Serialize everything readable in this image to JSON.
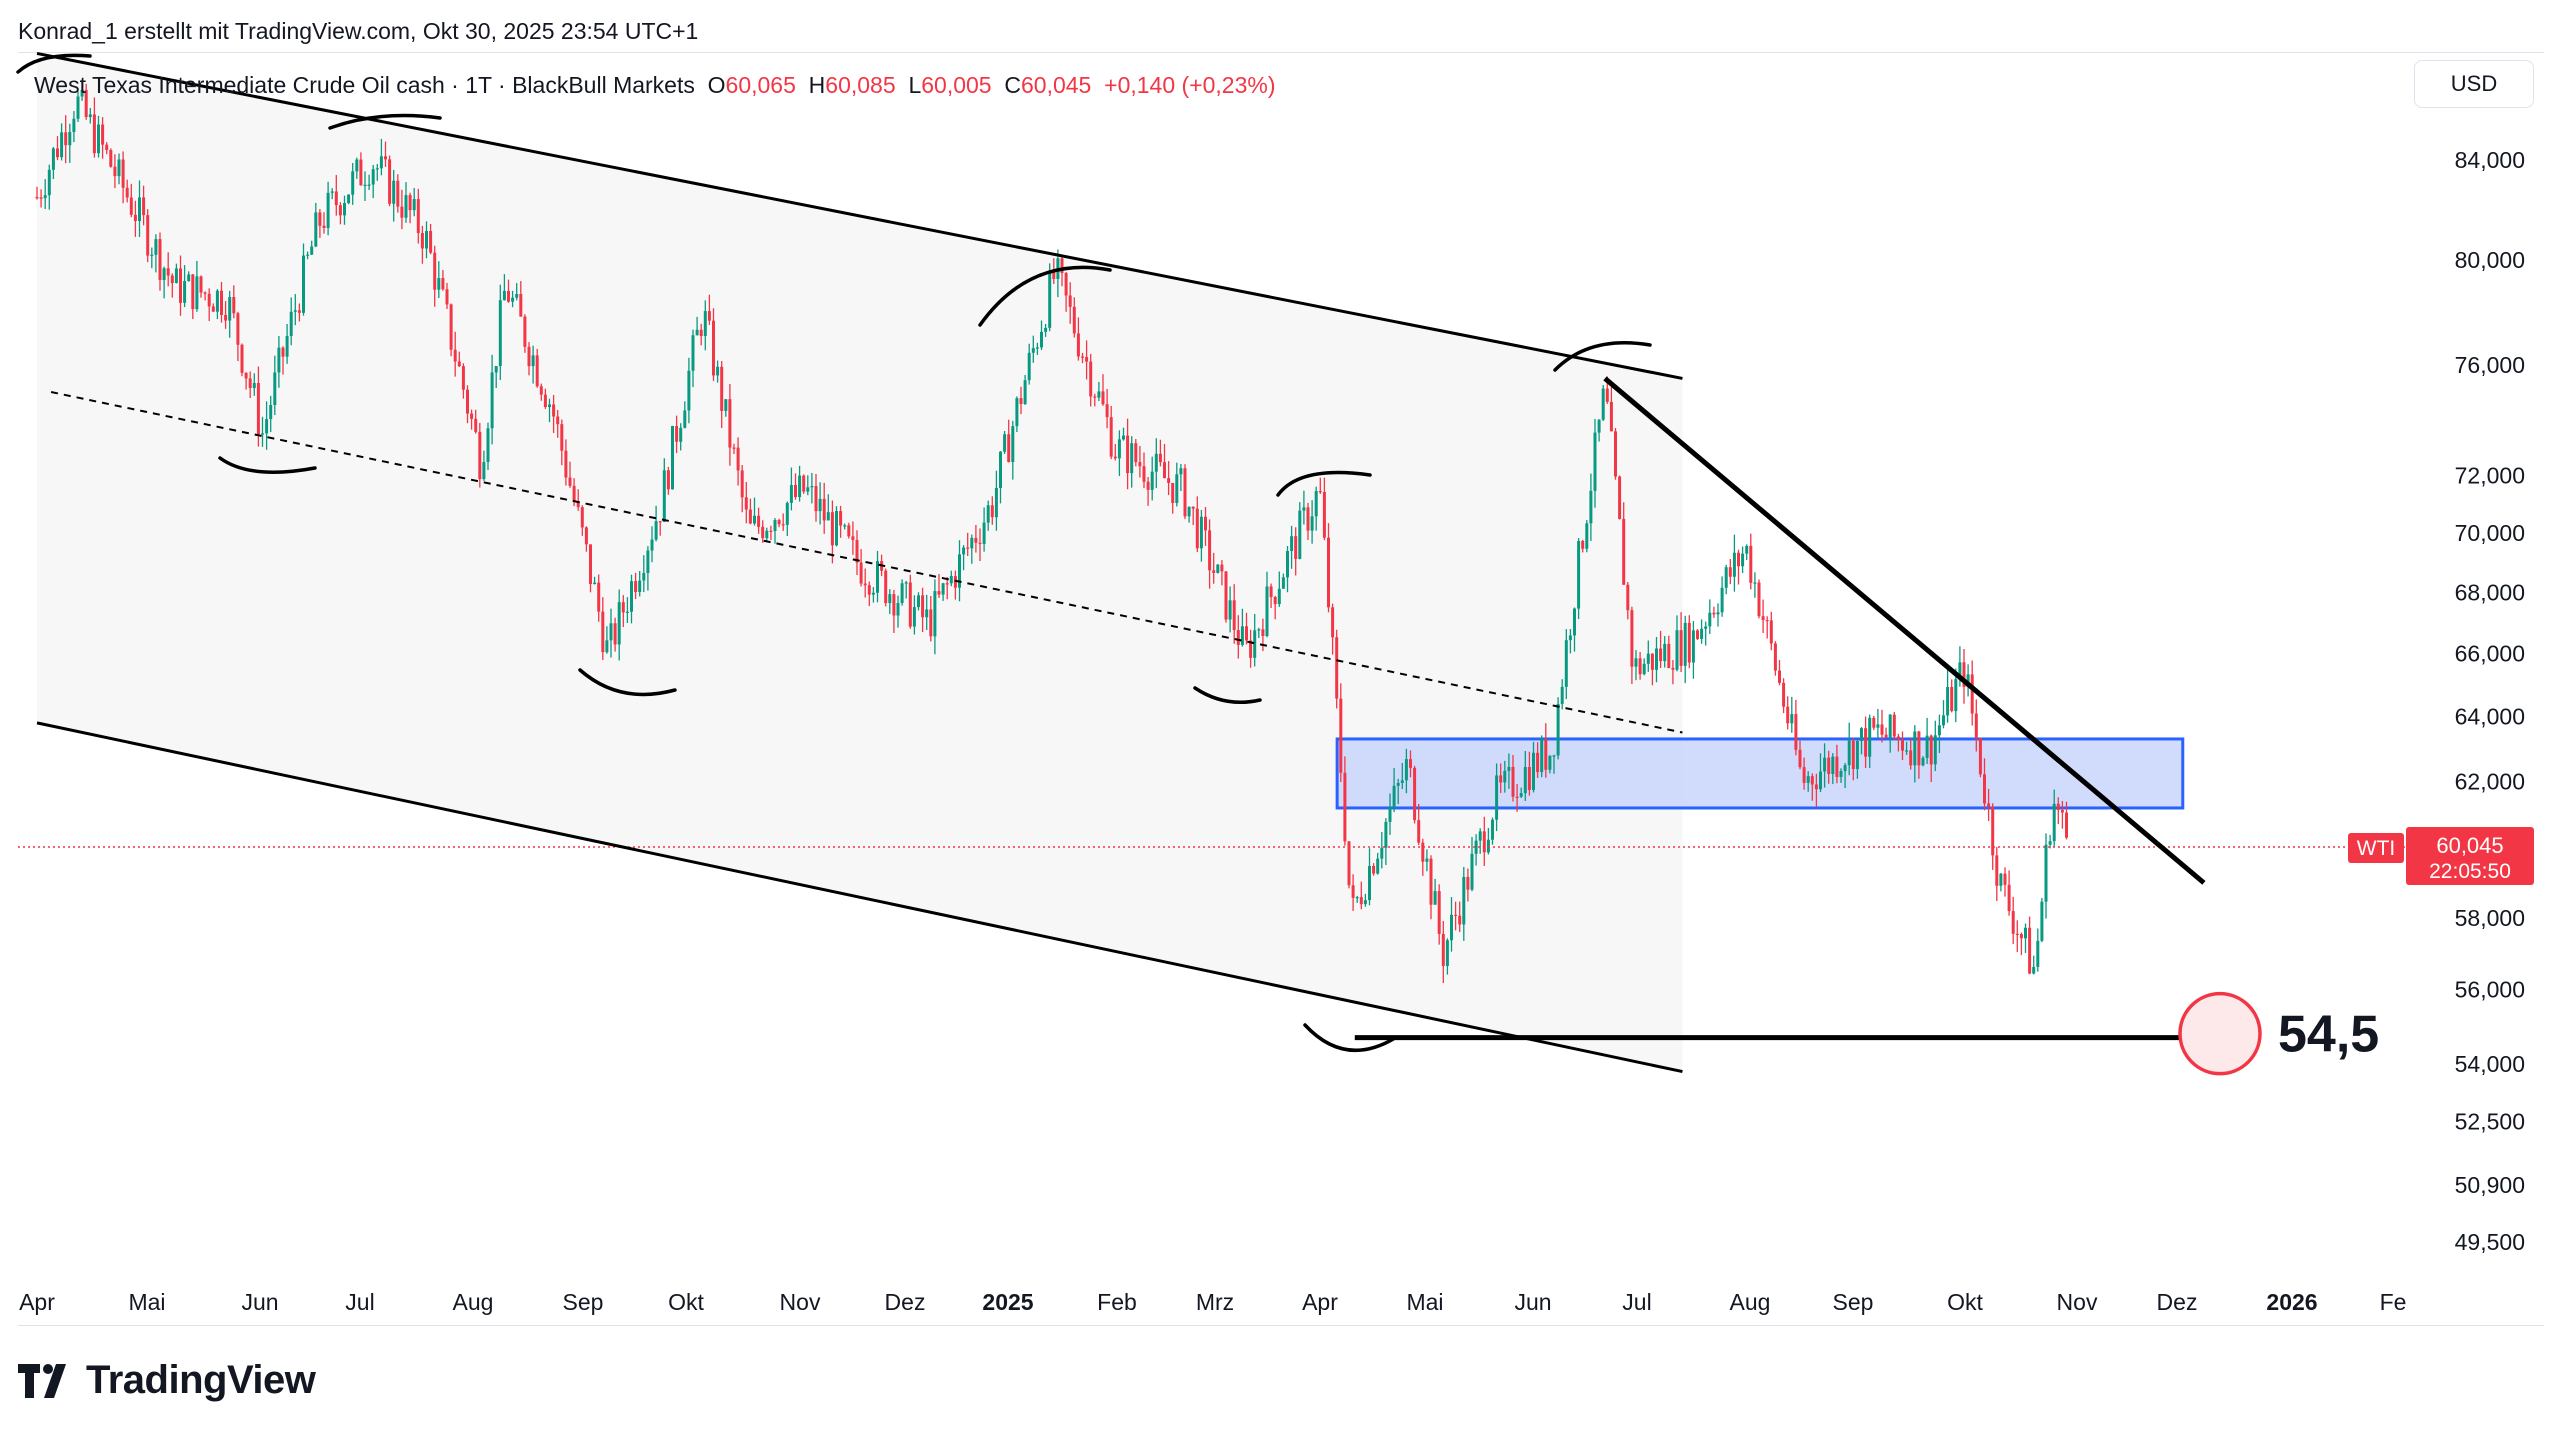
{
  "attribution": "Konrad_1 erstellt mit TradingView.com, Okt 30, 2025 23:54 UTC+1",
  "legend": {
    "symbol": "West Texas Intermediate Crude Oil cash · 1T · BlackBull Markets",
    "o_label": "O",
    "o": "60,065",
    "h_label": "H",
    "h": "60,085",
    "l_label": "L",
    "l": "60,005",
    "c_label": "C",
    "c": "60,045",
    "change": "+0,140 (+0,23%)"
  },
  "currency_button": "USD",
  "price_tag": {
    "symbol": "WTI",
    "price": "60,045",
    "countdown": "22:05:50"
  },
  "annotation_target": "54,5",
  "logo_text": "TradingView",
  "colors": {
    "up": "#089981",
    "down": "#f23645",
    "zone_fill": "#c9d6fb",
    "zone_border": "#2962ff",
    "lines": "#000000",
    "grid_text": "#131722"
  },
  "chart_data": {
    "type": "candlestick",
    "timeframe": "1T",
    "x_tick_labels": [
      "Apr",
      "Mai",
      "Jun",
      "Jul",
      "Aug",
      "Sep",
      "Okt",
      "Nov",
      "Dez",
      "2025",
      "Feb",
      "Mrz",
      "Apr",
      "Mai",
      "Jun",
      "Jul",
      "Aug",
      "Sep",
      "Okt",
      "Nov",
      "Dez",
      "2026",
      "Fe"
    ],
    "y_tick_labels": [
      "84,000",
      "80,000",
      "76,000",
      "72,000",
      "70,000",
      "68,000",
      "66,000",
      "64,000",
      "62,000",
      "58,000",
      "56,000",
      "54,000",
      "52,500",
      "50,900",
      "49,500"
    ],
    "y_ticks": [
      84000,
      80000,
      76000,
      72000,
      70000,
      68000,
      66000,
      64000,
      62000,
      58000,
      56000,
      54000,
      52500,
      50900,
      49500
    ],
    "y_scale": "log",
    "last_price": 60045,
    "path_anchors": [
      {
        "date": "2024-04-01",
        "price": 82.5
      },
      {
        "date": "2024-04-12",
        "price": 86.5
      },
      {
        "date": "2024-04-25",
        "price": 83.0
      },
      {
        "date": "2024-05-10",
        "price": 79.0
      },
      {
        "date": "2024-05-25",
        "price": 78.5
      },
      {
        "date": "2024-06-04",
        "price": 73.5
      },
      {
        "date": "2024-06-20",
        "price": 81.5
      },
      {
        "date": "2024-07-05",
        "price": 84.0
      },
      {
        "date": "2024-07-20",
        "price": 81.0
      },
      {
        "date": "2024-08-05",
        "price": 72.5
      },
      {
        "date": "2024-08-12",
        "price": 79.0
      },
      {
        "date": "2024-08-25",
        "price": 74.5
      },
      {
        "date": "2024-09-10",
        "price": 66.0
      },
      {
        "date": "2024-09-25",
        "price": 71.0
      },
      {
        "date": "2024-10-07",
        "price": 78.0
      },
      {
        "date": "2024-10-20",
        "price": 70.0
      },
      {
        "date": "2024-11-05",
        "price": 71.5
      },
      {
        "date": "2024-11-20",
        "price": 69.0
      },
      {
        "date": "2024-12-10",
        "price": 67.0
      },
      {
        "date": "2024-12-28",
        "price": 71.0
      },
      {
        "date": "2025-01-15",
        "price": 79.5
      },
      {
        "date": "2025-02-01",
        "price": 73.0
      },
      {
        "date": "2025-02-20",
        "price": 71.5
      },
      {
        "date": "2025-03-10",
        "price": 66.0
      },
      {
        "date": "2025-03-31",
        "price": 71.5
      },
      {
        "date": "2025-04-09",
        "price": 58.0
      },
      {
        "date": "2025-04-25",
        "price": 62.5
      },
      {
        "date": "2025-05-05",
        "price": 57.0
      },
      {
        "date": "2025-05-20",
        "price": 61.5
      },
      {
        "date": "2025-06-05",
        "price": 63.0
      },
      {
        "date": "2025-06-20",
        "price": 75.0
      },
      {
        "date": "2025-06-28",
        "price": 65.5
      },
      {
        "date": "2025-07-15",
        "price": 66.5
      },
      {
        "date": "2025-07-30",
        "price": 69.5
      },
      {
        "date": "2025-08-15",
        "price": 62.0
      },
      {
        "date": "2025-09-05",
        "price": 63.5
      },
      {
        "date": "2025-09-20",
        "price": 63.0
      },
      {
        "date": "2025-09-30",
        "price": 65.5
      },
      {
        "date": "2025-10-10",
        "price": 59.0
      },
      {
        "date": "2025-10-20",
        "price": 56.5
      },
      {
        "date": "2025-10-25",
        "price": 61.5
      },
      {
        "date": "2025-10-30",
        "price": 60.05
      }
    ],
    "zone": {
      "from": "2025-04-05",
      "to": "2025-12-01",
      "low": 61.2,
      "high": 63.3
    },
    "channel_upper": [
      {
        "date": "2024-04-01",
        "price": 88.5
      },
      {
        "date": "2025-07-12",
        "price": 75.5
      }
    ],
    "channel_mid": [
      {
        "date": "2024-04-05",
        "price": 75.0
      },
      {
        "date": "2025-07-12",
        "price": 63.5
      }
    ],
    "channel_lower": [
      {
        "date": "2024-04-01",
        "price": 63.8
      },
      {
        "date": "2025-07-12",
        "price": 53.8
      }
    ],
    "trendline": [
      {
        "date": "2025-06-20",
        "price": 75.5
      },
      {
        "date": "2025-12-07",
        "price": 59.0
      }
    ],
    "support_line": {
      "price": 54.7,
      "from": "2025-04-10",
      "to": "2025-12-01"
    }
  }
}
